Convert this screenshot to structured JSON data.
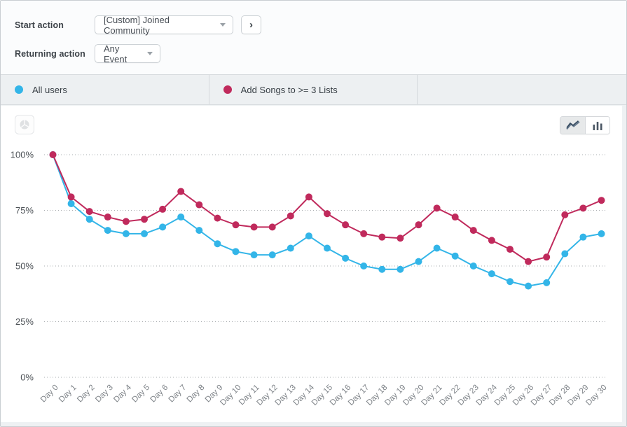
{
  "filters": {
    "start_action": {
      "label": "Start action",
      "value": "[Custom] Joined Community"
    },
    "returning_action": {
      "label": "Returning action",
      "value": "Any Event"
    },
    "expand_button_glyph": "›"
  },
  "legend": {
    "items": [
      {
        "label": "All users",
        "color": "#33b5e8"
      },
      {
        "label": "Add Songs to >= 3 Lists",
        "color": "#c02a5c"
      }
    ]
  },
  "toolbar": {
    "icons": [
      "pie-chart-icon-disabled",
      "line-chart-icon-selected",
      "bar-chart-icon"
    ]
  },
  "chart_data": {
    "type": "line",
    "title": "",
    "xlabel": "",
    "ylabel": "",
    "ylim": [
      0,
      100
    ],
    "y_ticks": [
      {
        "label": "0%",
        "value": 0
      },
      {
        "label": "25%",
        "value": 25
      },
      {
        "label": "50%",
        "value": 50
      },
      {
        "label": "75%",
        "value": 75
      },
      {
        "label": "100%",
        "value": 100
      }
    ],
    "grid": "horizontal-dotted",
    "legend_position": "top-bar",
    "categories": [
      "Day 0",
      "Day 1",
      "Day 2",
      "Day 3",
      "Day 4",
      "Day 5",
      "Day 6",
      "Day 7",
      "Day 8",
      "Day 9",
      "Day 10",
      "Day 11",
      "Day 12",
      "Day 13",
      "Day 14",
      "Day 15",
      "Day 16",
      "Day 17",
      "Day 18",
      "Day 19",
      "Day 20",
      "Day 21",
      "Day 22",
      "Day 23",
      "Day 24",
      "Day 25",
      "Day 26",
      "Day 27",
      "Day 28",
      "Day 29",
      "Day 30"
    ],
    "series": [
      {
        "name": "All users",
        "color": "#33b5e8",
        "values": [
          100,
          78,
          71,
          66,
          64.5,
          64.5,
          67.5,
          72,
          66,
          60,
          56.5,
          55,
          55,
          58,
          63.5,
          58,
          53.5,
          50,
          48.5,
          48.5,
          52,
          58,
          54.5,
          50,
          46.5,
          43,
          41,
          42.5,
          55.5,
          63,
          64.5
        ]
      },
      {
        "name": "Add Songs to >= 3 Lists",
        "color": "#c02a5c",
        "values": [
          100,
          81,
          74.5,
          72,
          70,
          71,
          75.5,
          83.5,
          77.5,
          71.5,
          68.5,
          67.5,
          67.5,
          72.5,
          81,
          73.5,
          68.5,
          64.5,
          63,
          62.5,
          68.5,
          76,
          72,
          66,
          61.5,
          57.5,
          52,
          54,
          73,
          76,
          79.5
        ]
      }
    ],
    "axis_text_color": "#4b5055",
    "x_text_color": "#7d8287",
    "gridline_color": "#a9adb0"
  }
}
